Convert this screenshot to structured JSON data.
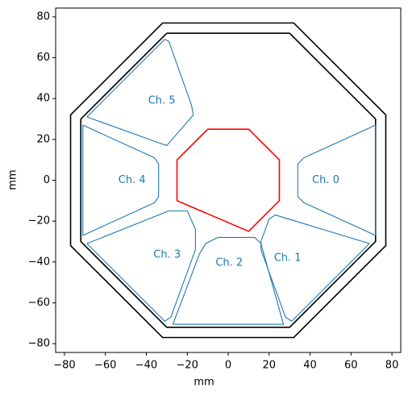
{
  "chart_data": {
    "type": "line",
    "xlabel": "mm",
    "ylabel": "mm",
    "xlim": [
      -84.3,
      84.3
    ],
    "ylim": [
      -84.3,
      84.3
    ],
    "xticks": [
      {
        "value": -80,
        "label": "−80"
      },
      {
        "value": -60,
        "label": "−60"
      },
      {
        "value": -40,
        "label": "−40"
      },
      {
        "value": -20,
        "label": "−20"
      },
      0,
      20,
      40,
      60,
      80
    ],
    "yticks": [
      {
        "value": -80,
        "label": "−80"
      },
      {
        "value": -60,
        "label": "−60"
      },
      {
        "value": -40,
        "label": "−40"
      },
      {
        "value": -20,
        "label": "−20"
      },
      0,
      20,
      40,
      60,
      80
    ],
    "series": [
      {
        "color": "#000000",
        "x": [
          -32,
          32,
          77,
          77,
          32,
          -32,
          -77,
          -77,
          -32
        ],
        "y": [
          77,
          77,
          32,
          -32,
          -77,
          -77,
          -32,
          32,
          77
        ]
      },
      {
        "color": "#000000",
        "x": [
          -30,
          30,
          72,
          72,
          30,
          -30,
          -72,
          -72,
          -30
        ],
        "y": [
          72,
          72,
          30,
          -30,
          -72,
          -72,
          -30,
          30,
          72
        ]
      },
      {
        "color": "#ff0000",
        "x": [
          -25,
          -10,
          10,
          25,
          25,
          10,
          -25,
          -25
        ],
        "y": [
          10,
          25,
          25,
          10,
          -10,
          -25,
          -10,
          10
        ]
      },
      {
        "name": "Ch. 0",
        "color": "#1f77b4",
        "x": [
          72,
          72,
          37,
          34,
          34,
          37,
          72
        ],
        "y": [
          27,
          -27,
          -11,
          -8,
          8,
          11,
          27
        ]
      },
      {
        "name": "Ch. 1",
        "color": "#1f77b4",
        "x": [
          69,
          31,
          28,
          16,
          16,
          20,
          23,
          69
        ],
        "y": [
          -31,
          -69,
          -67,
          -34,
          -30,
          -19,
          -17,
          -31
        ]
      },
      {
        "name": "Ch. 2",
        "color": "#1f77b4",
        "x": [
          -27,
          27,
          16,
          13,
          5,
          -5,
          -11,
          -14,
          -27
        ],
        "y": [
          -70.5,
          -70.5,
          -31,
          -28,
          -28,
          -28,
          -31,
          -36,
          -70.5
        ]
      },
      {
        "name": "Ch. 3",
        "color": "#1f77b4",
        "x": [
          -69,
          -31,
          -28,
          -16,
          -16,
          -20,
          -29,
          -69
        ],
        "y": [
          -31,
          -69,
          -67,
          -34,
          -24,
          -15,
          -15,
          -31
        ]
      },
      {
        "name": "Ch. 4",
        "color": "#1f77b4",
        "x": [
          -71,
          -71,
          -36,
          -34,
          -34,
          -36,
          -71
        ],
        "y": [
          27,
          -27,
          -11,
          -8,
          8,
          11,
          27
        ]
      },
      {
        "name": "Ch. 5",
        "color": "#1f77b4",
        "x": [
          -69,
          -31,
          -29,
          -18,
          -17,
          -30,
          -33,
          -69
        ],
        "y": [
          31,
          69,
          68,
          37,
          32,
          17,
          18,
          31
        ]
      }
    ]
  }
}
